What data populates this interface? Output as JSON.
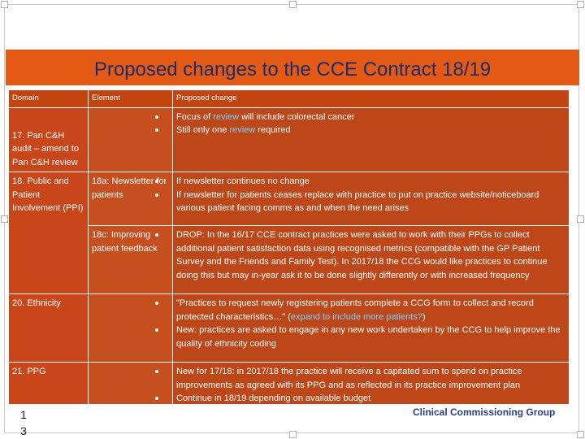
{
  "slide": {
    "title": "Proposed changes to the CCE Contract 18/19",
    "page_number_1": "1",
    "page_number_2": "3",
    "footer_brand": "Clinical Commissioning Group"
  },
  "table": {
    "headers": {
      "domain": "Domain",
      "element": "Element",
      "proposed": "Proposed change"
    },
    "rows": {
      "r1": {
        "domain": "17. Pan C&H audit – amend to Pan C&H review",
        "element": "",
        "items": [
          {
            "pre": "Focus of ",
            "hl": "review",
            "post": " will include colorectal cancer"
          },
          {
            "pre": "Still only one ",
            "hl": "review",
            "post": " required"
          }
        ]
      },
      "r2": {
        "domain": "18. Public and Patient Involvement (PPI)",
        "element": "18a: Newsletter for patients",
        "items": [
          {
            "text": "If newsletter continues no change"
          },
          {
            "text": "If newsletter for patients ceases replace with practice to put on practice website/noticeboard various patient facing comms as and when the need arises"
          }
        ]
      },
      "r3": {
        "element": "18c: Improving patient feedback",
        "items": [
          {
            "text": "DROP: In the 16/17 CCE contract practices were asked to work with their PPGs to collect additional patient satisfaction data using recognised metrics (compatible with the GP Patient Survey and the Friends and Family Test). In 2017/18 the CCG would like practices to continue doing this but may in-year ask it to be done slightly differently or with increased frequency"
          }
        ]
      },
      "r4": {
        "domain": "20. Ethnicity",
        "element": "",
        "items": [
          {
            "pre": "\"Practices to request newly registering patients complete a CCG form to collect and record protected characteristics…\" (",
            "hl": "expand to include more patients?",
            "post": ")"
          },
          {
            "text": "New: practices are asked to engage in any new work undertaken by the CCG to help improve the quality of ethnicity coding"
          }
        ]
      },
      "r5": {
        "domain": "21. PPG",
        "element": "",
        "items": [
          {
            "text": "New for 17/18: in 2017/18 the practice will receive a capitated sum to spend on practice improvements as agreed with its PPG and as reflected in its practice improvement plan"
          },
          {
            "text": "Continue in 18/19 depending on available budget"
          }
        ]
      }
    }
  }
}
